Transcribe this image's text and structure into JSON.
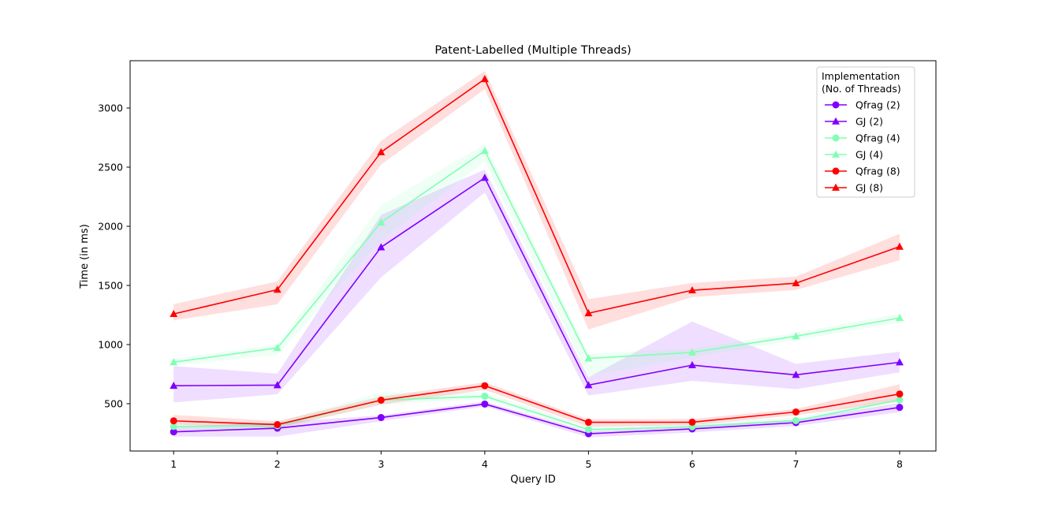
{
  "chart_data": {
    "type": "line",
    "title": "Patent-Labelled (Multiple Threads)",
    "xlabel": "Query ID",
    "ylabel": "Time (in ms)",
    "x": [
      1,
      2,
      3,
      4,
      5,
      6,
      7,
      8
    ],
    "xticks": [
      "1",
      "2",
      "3",
      "4",
      "5",
      "6",
      "7",
      "8"
    ],
    "yticks": [
      500,
      1000,
      1500,
      2000,
      2500,
      3000
    ],
    "xlim": [
      0.58,
      8.35
    ],
    "ylim": [
      100,
      3400
    ],
    "grid": false,
    "legend": {
      "title_line1": "Implementation",
      "title_line2": "(No. of Threads)",
      "placement": "top-right"
    },
    "series": [
      {
        "name": "Qfrag (2)",
        "marker": "circle",
        "color": "#8000ff",
        "values": [
          262,
          293,
          383,
          497,
          246,
          287,
          340,
          469
        ],
        "lower": [
          222,
          222,
          352,
          477,
          216,
          257,
          312,
          428
        ],
        "upper": [
          304,
          342,
          402,
          518,
          266,
          317,
          366,
          505
        ]
      },
      {
        "name": "GJ (2)",
        "marker": "triangle",
        "color": "#8000ff",
        "values": [
          652,
          657,
          1823,
          2410,
          657,
          826,
          744,
          850
        ],
        "lower": [
          511,
          580,
          1568,
          2286,
          569,
          693,
          623,
          765
        ],
        "upper": [
          818,
          754,
          2097,
          2479,
          723,
          1195,
          837,
          940
        ]
      },
      {
        "name": "Qfrag (4)",
        "marker": "circle",
        "color": "#80ffb4",
        "values": [
          308,
          314,
          530,
          563,
          281,
          305,
          357,
          533
        ],
        "lower": [
          281,
          287,
          492,
          537,
          259,
          285,
          335,
          500
        ],
        "upper": [
          343,
          343,
          597,
          597,
          305,
          336,
          385,
          563
        ]
      },
      {
        "name": "GJ (4)",
        "marker": "triangle",
        "color": "#80ffb4",
        "values": [
          851,
          972,
          2033,
          2638,
          883,
          934,
          1071,
          1225
        ],
        "lower": [
          821,
          912,
          1885,
          2543,
          736,
          891,
          1036,
          1185
        ],
        "upper": [
          883,
          998,
          2180,
          2696,
          924,
          966,
          1100,
          1262
        ]
      },
      {
        "name": "Qfrag (8)",
        "marker": "circle",
        "color": "#ff0000",
        "values": [
          355,
          323,
          530,
          652,
          343,
          344,
          430,
          582
        ],
        "lower": [
          323,
          296,
          492,
          617,
          305,
          318,
          402,
          519
        ],
        "upper": [
          405,
          353,
          560,
          681,
          368,
          371,
          455,
          665
        ]
      },
      {
        "name": "GJ (8)",
        "marker": "triangle",
        "color": "#ff0000",
        "values": [
          1259,
          1464,
          2627,
          3245,
          1265,
          1459,
          1519,
          1828
        ],
        "lower": [
          1204,
          1340,
          2522,
          3160,
          1127,
          1402,
          1462,
          1713
        ],
        "upper": [
          1342,
          1534,
          2723,
          3313,
          1384,
          1521,
          1574,
          1937
        ]
      }
    ]
  }
}
